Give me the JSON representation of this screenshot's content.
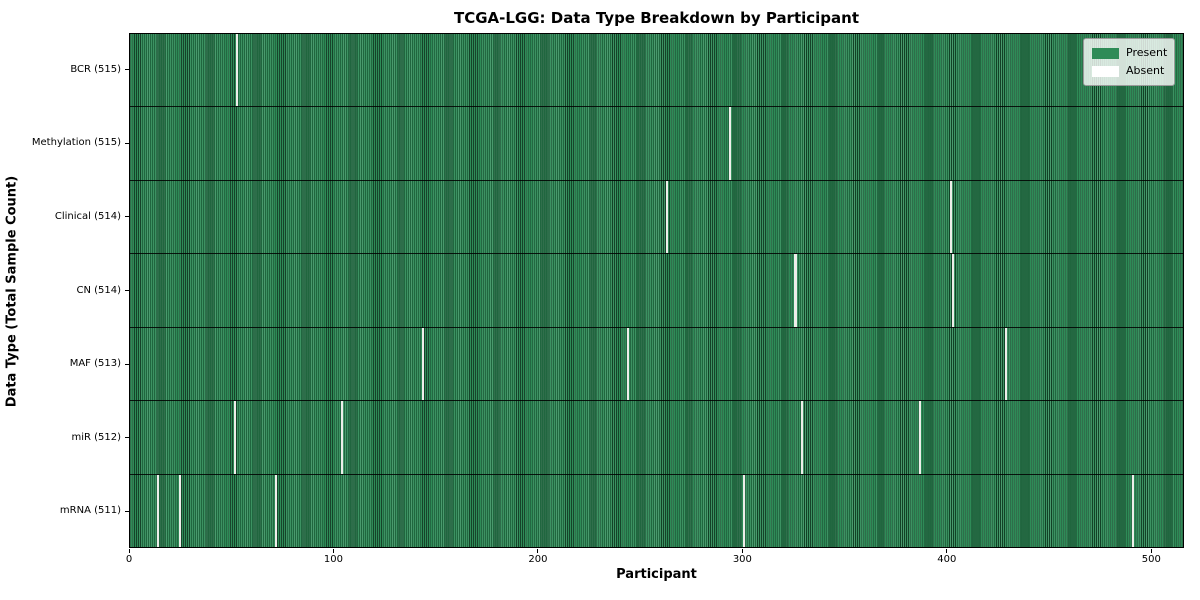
{
  "title": "TCGA-LGG: Data Type Breakdown by Participant",
  "xlabel": "Participant",
  "ylabel": "Data Type (Total Sample Count)",
  "legend": {
    "present_label": "Present",
    "absent_label": "Absent"
  },
  "colors": {
    "present": "#2e8b57",
    "absent": "#ffffff",
    "absent_line": "#eeeeea",
    "frame": "#000000"
  },
  "chart_data": {
    "type": "heatmap",
    "title": "TCGA-LGG: Data Type Breakdown by Participant",
    "xlabel": "Participant",
    "ylabel": "Data Type (Total Sample Count)",
    "x_ticks": [
      0,
      100,
      200,
      300,
      400,
      500
    ],
    "x_range": [
      0,
      516
    ],
    "total_participants": 516,
    "legend_position": "upper right",
    "rows": [
      {
        "label": "BCR (515)",
        "data_type": "BCR",
        "present_count": 515,
        "absent_participants": [
          52
        ]
      },
      {
        "label": "Methylation (515)",
        "data_type": "Methylation",
        "present_count": 515,
        "absent_participants": [
          293
        ]
      },
      {
        "label": "Clinical (514)",
        "data_type": "Clinical",
        "present_count": 514,
        "absent_participants": [
          262,
          401
        ]
      },
      {
        "label": "CN (514)",
        "data_type": "CN",
        "present_count": 514,
        "absent_participants": [
          325,
          402
        ]
      },
      {
        "label": "MAF (513)",
        "data_type": "MAF",
        "present_count": 513,
        "absent_participants": [
          143,
          243,
          428
        ]
      },
      {
        "label": "miR (512)",
        "data_type": "miR",
        "present_count": 512,
        "absent_participants": [
          51,
          103,
          328,
          386
        ]
      },
      {
        "label": "mRNA (511)",
        "data_type": "mRNA",
        "present_count": 511,
        "absent_participants": [
          13,
          24,
          71,
          300,
          490
        ]
      }
    ]
  }
}
